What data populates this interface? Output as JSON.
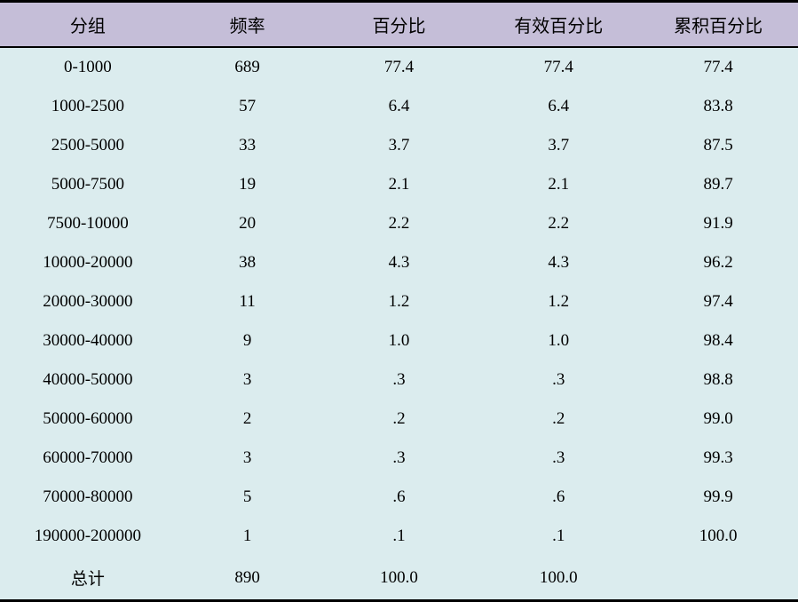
{
  "table": {
    "type": "table",
    "header_bg": "#c5bed8",
    "body_bg": "#dbecee",
    "border_color": "#000000",
    "header_font_family": "SimSun",
    "body_font_family_numeric": "Times New Roman",
    "body_font_family_cn": "SimSun",
    "header_fontsize": 20,
    "body_fontsize": 19,
    "columns": [
      {
        "key": "group",
        "label": "分组",
        "width_pct": 22,
        "align": "center"
      },
      {
        "key": "freq",
        "label": "频率",
        "width_pct": 18,
        "align": "center"
      },
      {
        "key": "pct",
        "label": "百分比",
        "width_pct": 20,
        "align": "center"
      },
      {
        "key": "valid",
        "label": "有效百分比",
        "width_pct": 20,
        "align": "center"
      },
      {
        "key": "cum",
        "label": "累积百分比",
        "width_pct": 20,
        "align": "center"
      }
    ],
    "rows": [
      {
        "group": "0-1000",
        "freq": "689",
        "pct": "77.4",
        "valid": "77.4",
        "cum": "77.4"
      },
      {
        "group": "1000-2500",
        "freq": "57",
        "pct": "6.4",
        "valid": "6.4",
        "cum": "83.8"
      },
      {
        "group": "2500-5000",
        "freq": "33",
        "pct": "3.7",
        "valid": "3.7",
        "cum": "87.5"
      },
      {
        "group": "5000-7500",
        "freq": "19",
        "pct": "2.1",
        "valid": "2.1",
        "cum": "89.7"
      },
      {
        "group": "7500-10000",
        "freq": "20",
        "pct": "2.2",
        "valid": "2.2",
        "cum": "91.9"
      },
      {
        "group": "10000-20000",
        "freq": "38",
        "pct": "4.3",
        "valid": "4.3",
        "cum": "96.2"
      },
      {
        "group": "20000-30000",
        "freq": "11",
        "pct": "1.2",
        "valid": "1.2",
        "cum": "97.4"
      },
      {
        "group": "30000-40000",
        "freq": "9",
        "pct": "1.0",
        "valid": "1.0",
        "cum": "98.4"
      },
      {
        "group": "40000-50000",
        "freq": "3",
        "pct": ".3",
        "valid": ".3",
        "cum": "98.8"
      },
      {
        "group": "50000-60000",
        "freq": "2",
        "pct": ".2",
        "valid": ".2",
        "cum": "99.0"
      },
      {
        "group": "60000-70000",
        "freq": "3",
        "pct": ".3",
        "valid": ".3",
        "cum": "99.3"
      },
      {
        "group": "70000-80000",
        "freq": "5",
        "pct": ".6",
        "valid": ".6",
        "cum": "99.9"
      },
      {
        "group": "190000-200000",
        "freq": "1",
        "pct": ".1",
        "valid": ".1",
        "cum": "100.0"
      },
      {
        "group": "总计",
        "freq": "890",
        "pct": "100.0",
        "valid": "100.0",
        "cum": ""
      }
    ]
  }
}
